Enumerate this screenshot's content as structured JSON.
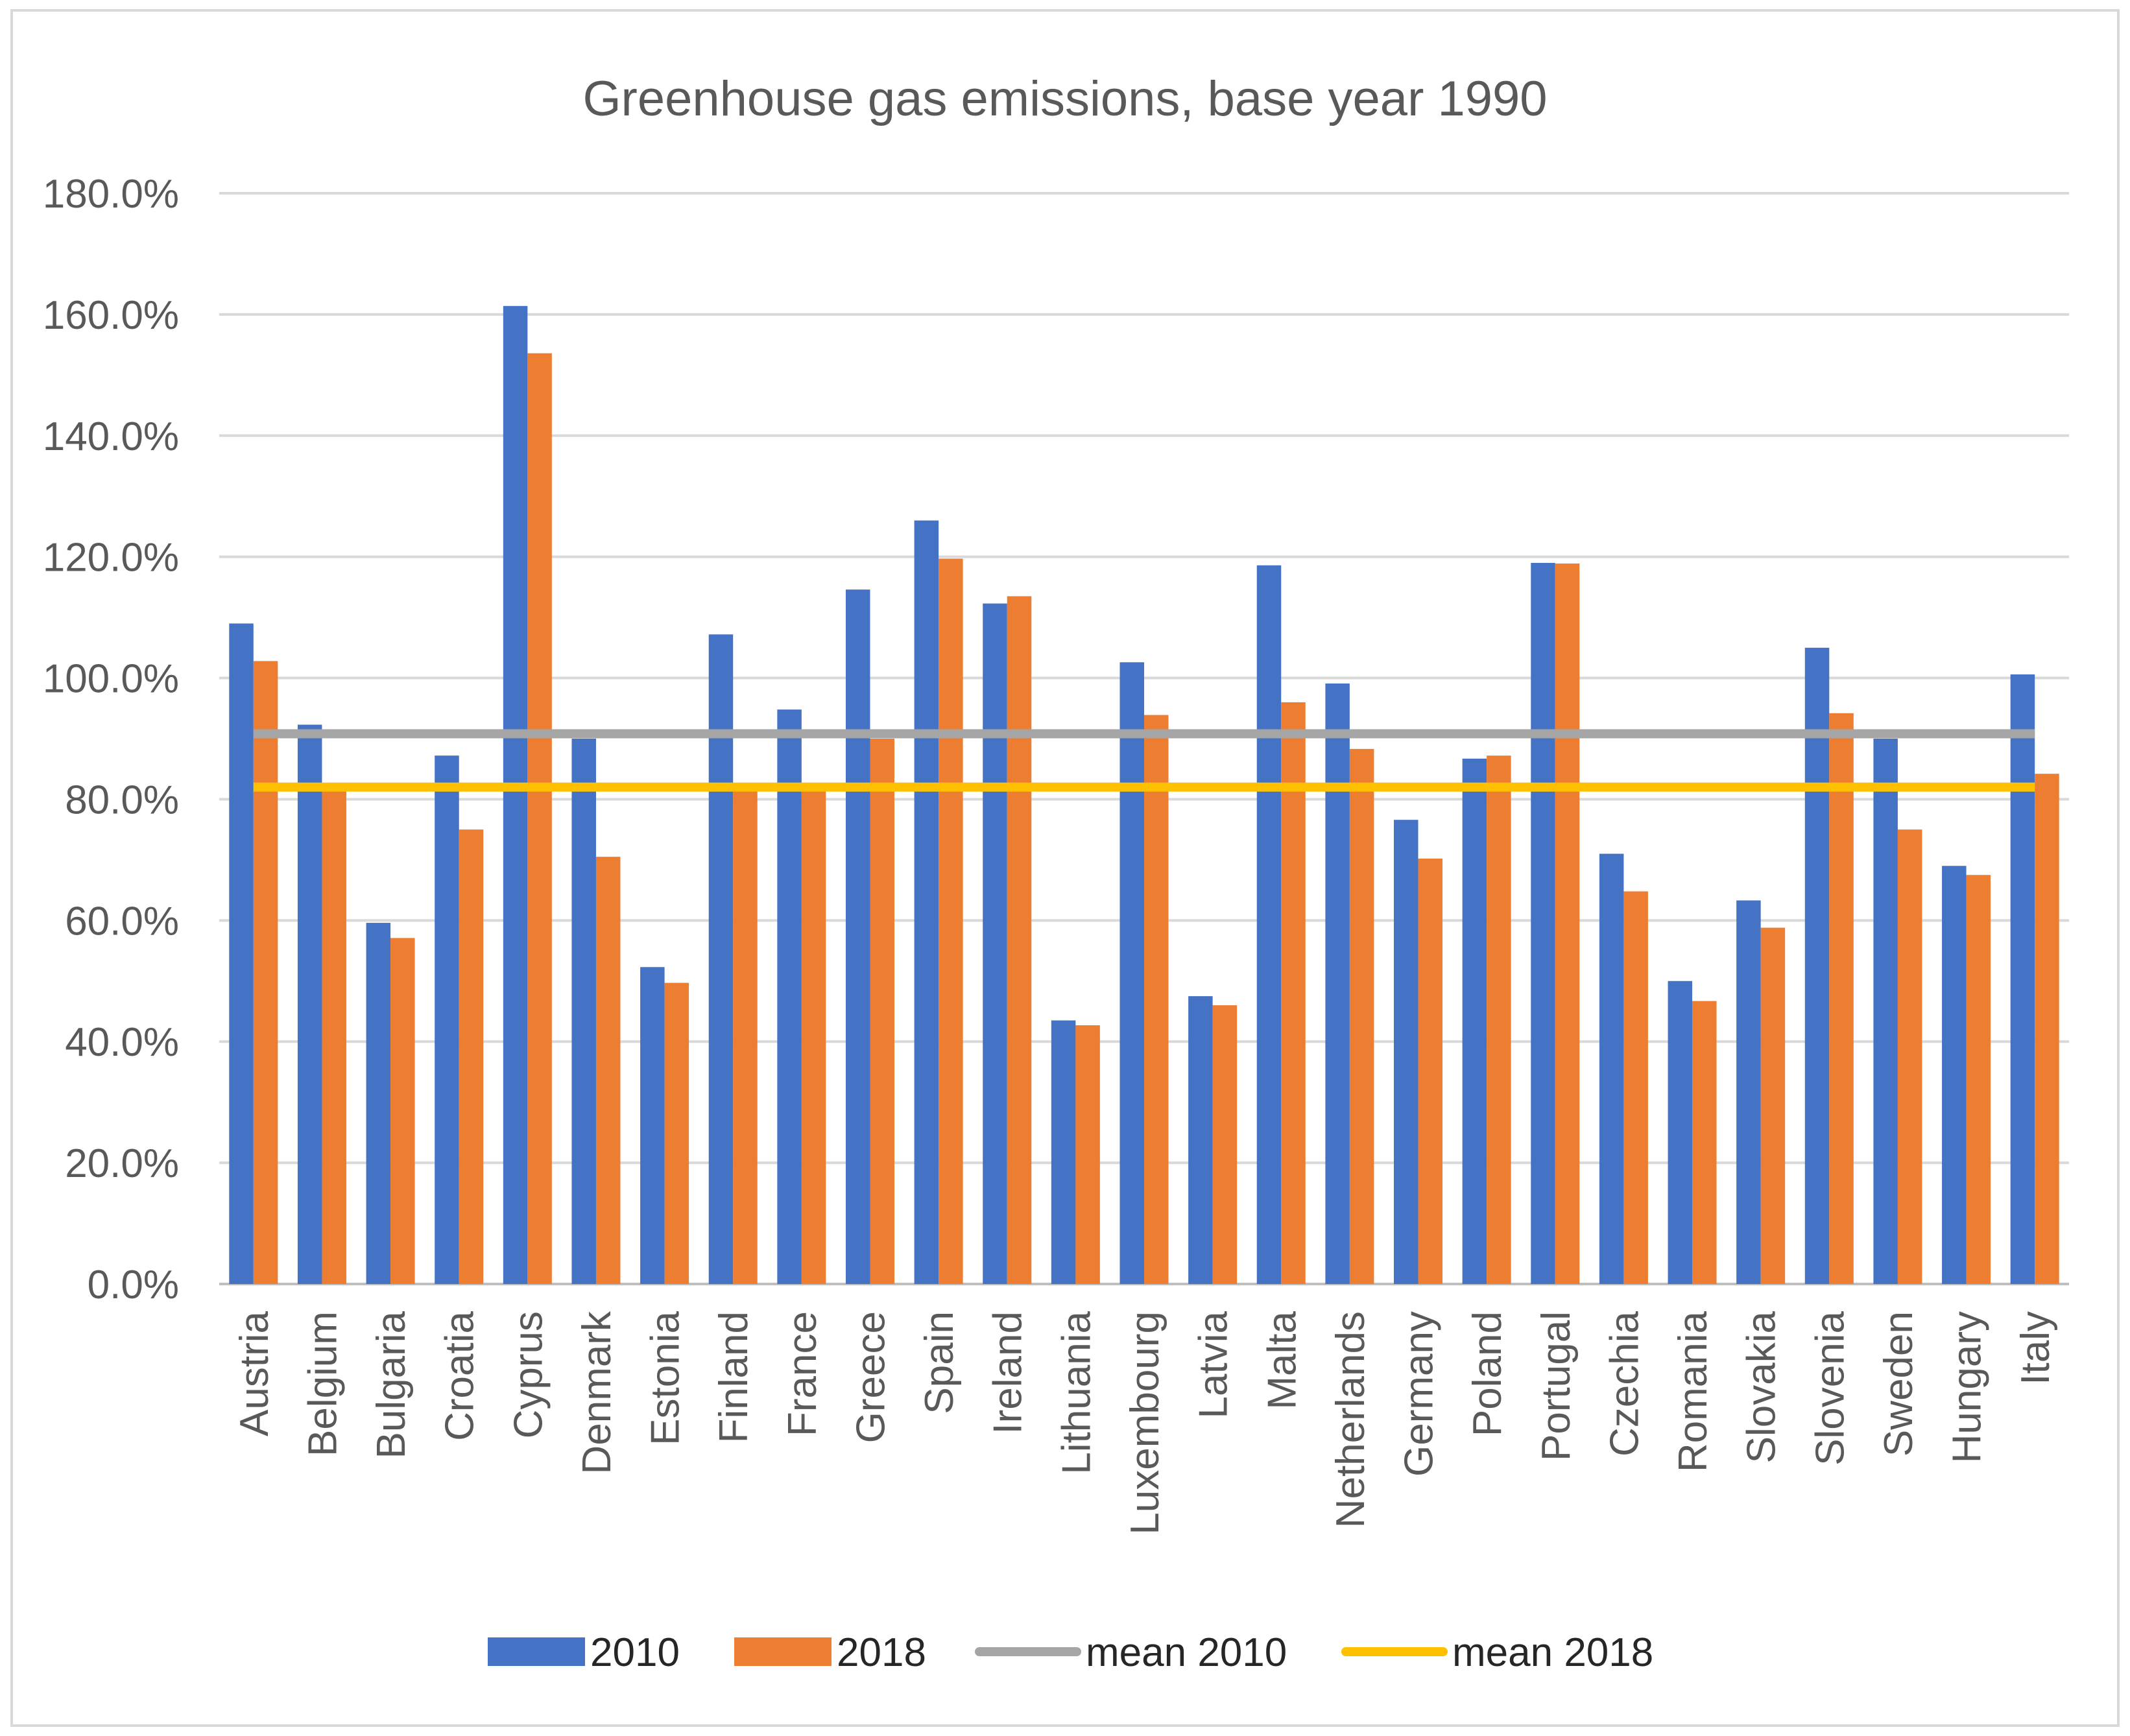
{
  "chart_data": {
    "type": "bar",
    "title": "Greenhouse gas emissions, base year 1990",
    "xlabel": "",
    "ylabel": "",
    "ylim": [
      0,
      180
    ],
    "y_ticks": [
      0,
      20,
      40,
      60,
      80,
      100,
      120,
      140,
      160,
      180
    ],
    "y_tick_labels": [
      "0.0%",
      "20.0%",
      "40.0%",
      "60.0%",
      "80.0%",
      "100.0%",
      "120.0%",
      "140.0%",
      "160.0%",
      "180.0%"
    ],
    "grid": true,
    "legend_position": "bottom",
    "categories": [
      "Austria",
      "Belgium",
      "Bulgaria",
      "Croatia",
      "Cyprus",
      "Denmark",
      "Estonia",
      "Finland",
      "France",
      "Greece",
      "Spain",
      "Ireland",
      "Lithuania",
      "Luxembourg",
      "Latvia",
      "Malta",
      "Netherlands",
      "Germany",
      "Poland",
      "Portugal",
      "Czechia",
      "Romania",
      "Slovakia",
      "Slovenia",
      "Sweden",
      "Hungary",
      "Italy"
    ],
    "series": [
      {
        "name": "2010",
        "color": "#4472C4",
        "values": [
          109.0,
          92.3,
          59.6,
          87.2,
          161.4,
          90.0,
          52.3,
          107.2,
          94.8,
          114.6,
          126.0,
          112.3,
          43.5,
          102.6,
          47.5,
          118.6,
          99.1,
          76.6,
          86.7,
          119.0,
          71.0,
          50.0,
          63.3,
          105.0,
          90.0,
          69.0,
          100.6
        ]
      },
      {
        "name": "2018",
        "color": "#ED7D31",
        "values": [
          102.8,
          82.0,
          57.1,
          75.0,
          153.6,
          70.5,
          49.7,
          82.0,
          82.0,
          90.0,
          119.7,
          113.5,
          42.7,
          93.9,
          46.0,
          96.0,
          88.3,
          70.2,
          87.2,
          118.9,
          64.8,
          46.7,
          58.8,
          94.2,
          75.0,
          67.5,
          84.2
        ]
      }
    ],
    "reference_lines": [
      {
        "name": "mean 2010",
        "value": 90.8,
        "color": "#A5A5A5"
      },
      {
        "name": "mean 2018",
        "value": 82.0,
        "color": "#FFC000"
      }
    ]
  }
}
